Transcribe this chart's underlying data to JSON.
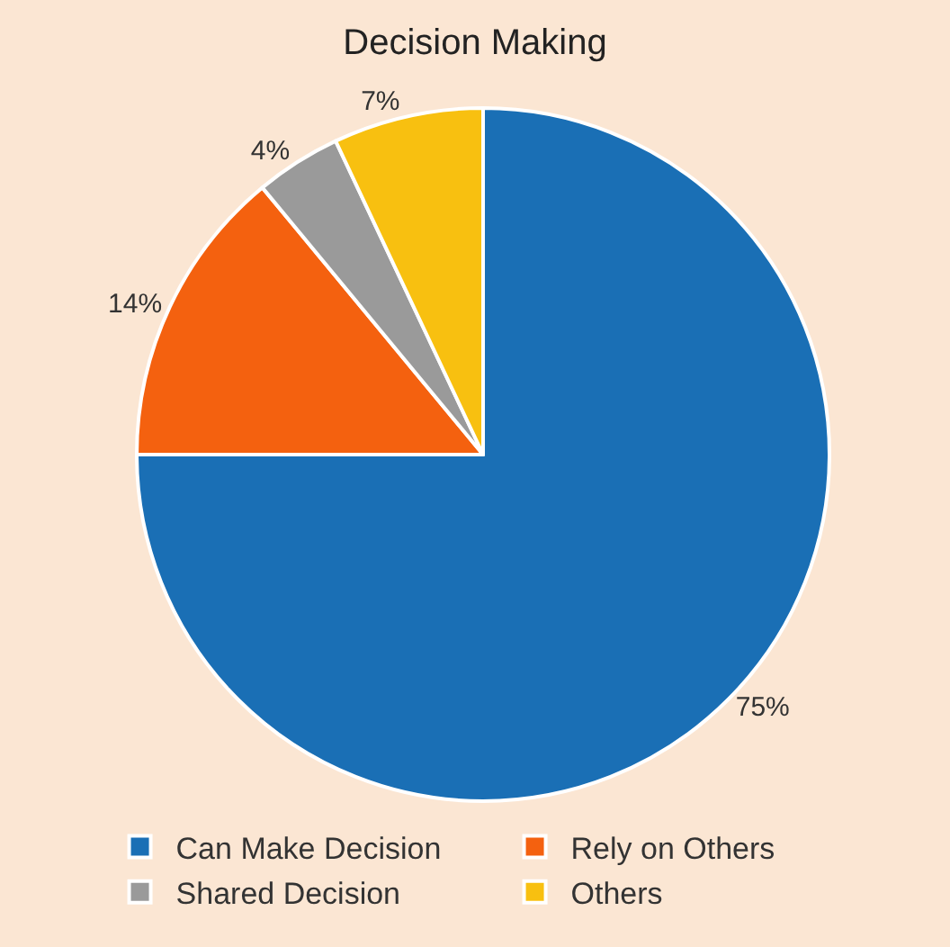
{
  "chart_data": {
    "type": "pie",
    "title": "Decision Making",
    "categories": [
      "Can Make Decision",
      "Rely on Others",
      "Shared Decision",
      "Others"
    ],
    "values": [
      75,
      14,
      4,
      7
    ],
    "value_labels": [
      "75%",
      "14%",
      "4%",
      "7%"
    ],
    "colors": [
      "#1a6fb5",
      "#f4610f",
      "#9a9a9a",
      "#f8c010"
    ],
    "legend": "bottom"
  }
}
